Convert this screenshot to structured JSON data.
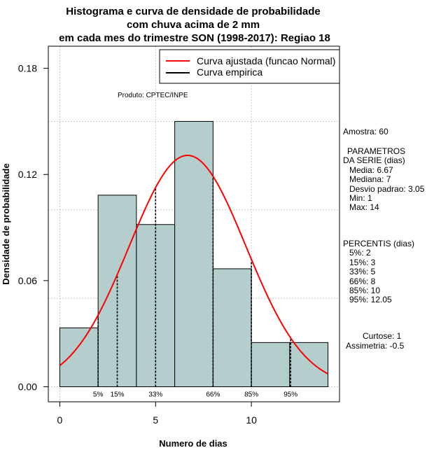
{
  "chart_data": {
    "type": "histogram",
    "title": [
      "Histograma e curva de densidade de probabilidade",
      "com chuva acima de 2 mm",
      "em cada mes do trimestre SON (1998-2017): Regiao 18"
    ],
    "xlabel": "Numero de dias",
    "ylabel": "Densidade de probabilidade",
    "xlim": [
      -0.6,
      14.6
    ],
    "ylim": [
      -0.0085,
      0.1925
    ],
    "x_ticks": [
      0,
      5,
      10
    ],
    "y_ticks": [
      0.0,
      0.06,
      0.12,
      0.18
    ],
    "y_tick_labels": [
      "0.00",
      "0.06",
      "0.12",
      "0.18"
    ],
    "grid_x": [
      0,
      5,
      10
    ],
    "grid_y": [
      0.0,
      0.05,
      0.1,
      0.15
    ],
    "bins": [
      [
        0,
        2
      ],
      [
        2,
        4
      ],
      [
        4,
        6
      ],
      [
        6,
        8
      ],
      [
        8,
        10
      ],
      [
        10,
        12
      ],
      [
        12,
        14
      ]
    ],
    "values": [
      0.0333,
      0.1083,
      0.0917,
      0.15,
      0.0667,
      0.025,
      0.025
    ],
    "bar_color": "#b4cdcd",
    "normal_fit": {
      "mean": 6.67,
      "sd": 3.05,
      "color": "#ff0000"
    },
    "percentiles": [
      {
        "label": "5%",
        "x": 2
      },
      {
        "label": "15%",
        "x": 3
      },
      {
        "label": "33%",
        "x": 5
      },
      {
        "label": "66%",
        "x": 8
      },
      {
        "label": "85%",
        "x": 10
      },
      {
        "label": "95%",
        "x": 12.05
      }
    ],
    "legend": {
      "position": "top-right",
      "entries": [
        {
          "label": "Curva ajustada (funcao Normal)",
          "color": "#ff0000"
        },
        {
          "label": "Curva empirica",
          "color": "#000000"
        }
      ]
    },
    "annotation": "Produto: CPTEC/INPE"
  },
  "stats": {
    "amostra": "Amostra: 60",
    "param_title": "PARAMETROS",
    "param_sub": "DA SERIE (dias)",
    "media": "Media: 6.67",
    "mediana": "Mediana: 7",
    "desvio": "Desvio padrao: 3.05",
    "min": "Min: 1",
    "max": "Max: 14",
    "perc_title": "PERCENTIS (dias)",
    "p5": "5%: 2",
    "p15": "15%: 3",
    "p33": "33%: 5",
    "p66": "66%: 8",
    "p85": "85%: 10",
    "p95": "95%: 12.05",
    "curtose": "Curtose: 1",
    "assimetria": "Assimetria: -0.5"
  }
}
